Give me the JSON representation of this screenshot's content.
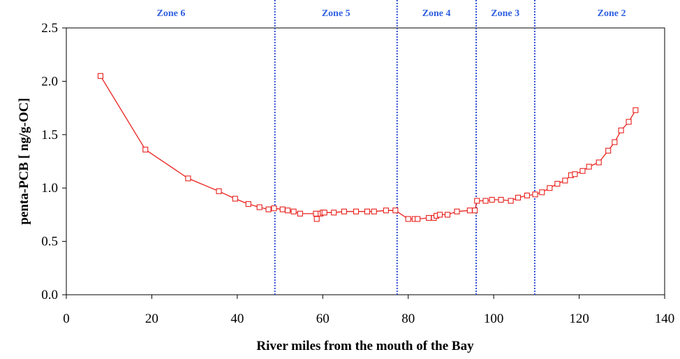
{
  "chart_data": {
    "type": "line",
    "title": "",
    "xlabel": "River miles from the mouth of the Bay",
    "ylabel": "penta-PCB [ ng/g-OC]",
    "xlim": [
      0,
      140
    ],
    "ylim": [
      0,
      2.5
    ],
    "x_ticks": [
      "0",
      "20",
      "40",
      "60",
      "80",
      "100",
      "120",
      "140"
    ],
    "y_ticks": [
      "0.0",
      "0.5",
      "1.0",
      "1.5",
      "2.0",
      "2.5"
    ],
    "grid": false,
    "legend": "none",
    "series_color": "#e8211c",
    "zone_line_color": "#2e4fd6",
    "zone_label_color": "#2e5fe0",
    "zone_boundaries": [
      48.8,
      77.4,
      95.9,
      109.6
    ],
    "zones": [
      {
        "label": "Zone 6",
        "x": 24.5
      },
      {
        "label": "Zone 5",
        "x": 63.1
      },
      {
        "label": "Zone 4",
        "x": 86.6
      },
      {
        "label": "Zone 3",
        "x": 102.7
      },
      {
        "label": "Zone 2",
        "x": 127.6
      }
    ],
    "series": [
      {
        "x": [
          8.0,
          18.5,
          28.5,
          35.7,
          39.5,
          42.6,
          45.2,
          47.3,
          48.6,
          50.6,
          51.8,
          53.2,
          54.7,
          58.4,
          58.6,
          59.5,
          60.0,
          60.4,
          62.6,
          65.0,
          67.8,
          70.4,
          72.0,
          74.8,
          77.0,
          80.0,
          81.5,
          82.2,
          84.8,
          86.0,
          86.6,
          87.4,
          89.2,
          91.4,
          94.4,
          95.6,
          96.1,
          98.1,
          99.6,
          101.7,
          104.0,
          105.7,
          107.8,
          109.7,
          111.3,
          113.1,
          114.9,
          116.7,
          118.1,
          119.0,
          120.8,
          122.3,
          124.6,
          126.8,
          128.3,
          129.8,
          131.6,
          133.2
        ],
        "values": [
          2.05,
          1.36,
          1.09,
          0.97,
          0.9,
          0.85,
          0.82,
          0.8,
          0.81,
          0.8,
          0.79,
          0.78,
          0.76,
          0.76,
          0.71,
          0.76,
          0.77,
          0.77,
          0.77,
          0.78,
          0.78,
          0.78,
          0.78,
          0.79,
          0.79,
          0.71,
          0.71,
          0.71,
          0.72,
          0.72,
          0.74,
          0.75,
          0.75,
          0.78,
          0.79,
          0.79,
          0.88,
          0.88,
          0.89,
          0.89,
          0.88,
          0.91,
          0.93,
          0.94,
          0.96,
          1.0,
          1.04,
          1.07,
          1.12,
          1.13,
          1.16,
          1.2,
          1.24,
          1.35,
          1.43,
          1.54,
          1.62,
          1.73
        ]
      }
    ]
  }
}
